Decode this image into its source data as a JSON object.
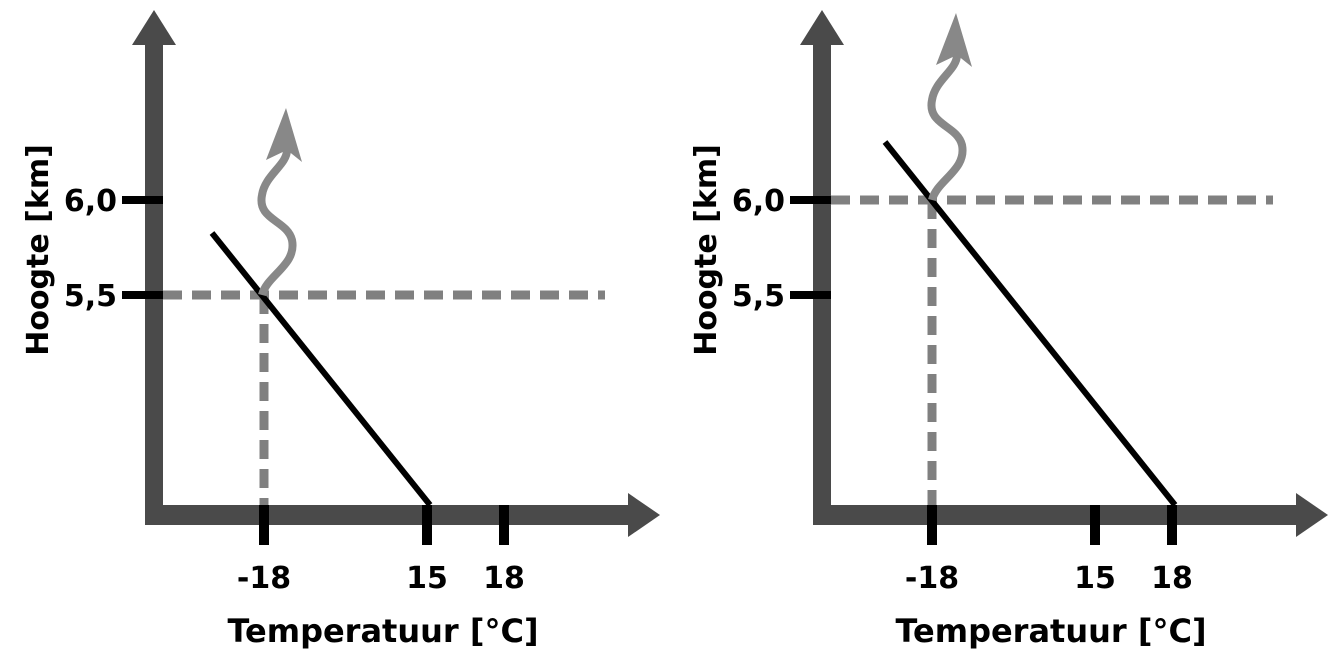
{
  "chart_data": [
    {
      "type": "line",
      "ylabel": "Hoogte [km]",
      "xlabel": "Temperatuur [°C]",
      "y_ticks": [
        "6,0",
        "5,5"
      ],
      "x_ticks": [
        "-18",
        "15",
        "18"
      ],
      "line": {
        "surface_temperature": 15,
        "top_temperature_at_height_km": 5.5,
        "passes": {
          "temperature": -18,
          "height_km": 5.5
        }
      },
      "emission_height_label": "5,5",
      "emission_temperature_label": "-18"
    },
    {
      "type": "line",
      "ylabel": "Hoogte [km]",
      "xlabel": "Temperatuur [°C]",
      "y_ticks": [
        "6,0",
        "5,5"
      ],
      "x_ticks": [
        "-18",
        "15",
        "18"
      ],
      "line": {
        "surface_temperature": 18,
        "passes": {
          "temperature": -18,
          "height_km": 6.0
        }
      },
      "emission_height_label": "6,0",
      "emission_temperature_label": "-18"
    }
  ],
  "colors": {
    "axis": "#4a4a4a",
    "line": "#000000",
    "dashed": "#808080",
    "arrow": "#888888"
  }
}
